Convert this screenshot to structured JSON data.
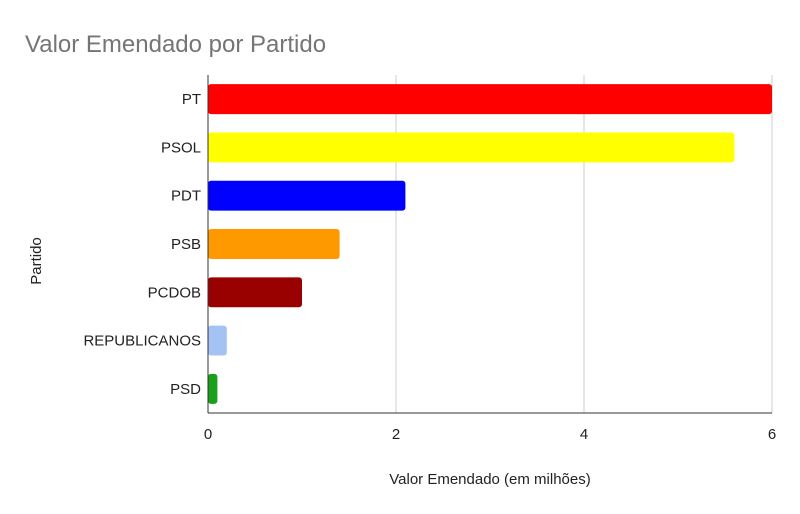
{
  "chart_data": {
    "type": "bar",
    "orientation": "horizontal",
    "title": "Valor Emendado por Partido",
    "xlabel": "Valor Emendado (em milhões)",
    "ylabel": "Partido",
    "categories": [
      "PT",
      "PSOL",
      "PDT",
      "PSB",
      "PCDOB",
      "REPUBLICANOS",
      "PSD"
    ],
    "values": [
      6.0,
      5.6,
      2.1,
      1.4,
      1.0,
      0.2,
      0.1
    ],
    "colors": [
      "#ff0000",
      "#ffff00",
      "#0000ff",
      "#ff9900",
      "#990000",
      "#a4c2f4",
      "#1a9f1a"
    ],
    "xlim": [
      0,
      6
    ],
    "xticks": [
      0,
      2,
      4,
      6
    ],
    "grid": "vertical",
    "legend": "none"
  }
}
